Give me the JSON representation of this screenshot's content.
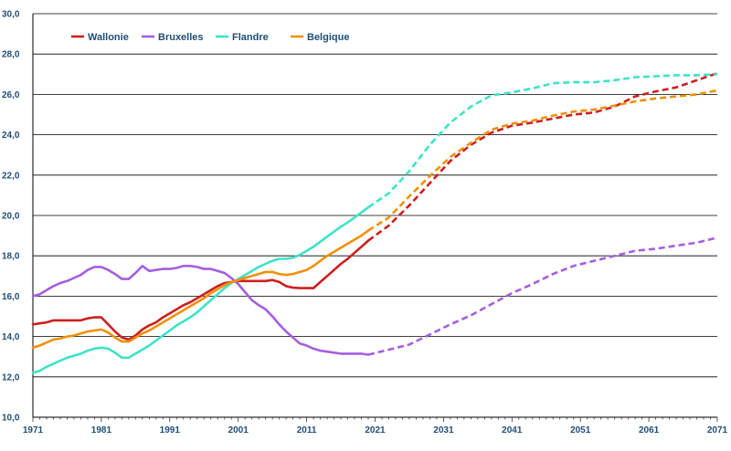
{
  "chart_data": {
    "type": "line",
    "title": "",
    "xlabel": "",
    "ylabel": "",
    "xlim": [
      1971,
      2071
    ],
    "ylim": [
      10,
      30
    ],
    "y_ticks": [
      "10,0",
      "12,0",
      "14,0",
      "16,0",
      "18,0",
      "20,0",
      "22,0",
      "24,0",
      "26,0",
      "28,0",
      "30,0"
    ],
    "x_ticks": [
      "1971",
      "1981",
      "1991",
      "2001",
      "2011",
      "2021",
      "2031",
      "2041",
      "2051",
      "2061",
      "2071"
    ],
    "grid": "horizontal",
    "legend_position": "top-left",
    "observed_until": 2020,
    "style_note": "solid lines up to 2020 (observed), dashed lines afterwards (projection)",
    "series": [
      {
        "name": "Wallonie",
        "color": "#cc1f1f",
        "points": [
          [
            1971,
            14.6
          ],
          [
            1972,
            14.65
          ],
          [
            1973,
            14.7
          ],
          [
            1974,
            14.8
          ],
          [
            1975,
            14.8
          ],
          [
            1976,
            14.8
          ],
          [
            1977,
            14.8
          ],
          [
            1978,
            14.8
          ],
          [
            1979,
            14.9
          ],
          [
            1980,
            14.95
          ],
          [
            1981,
            14.95
          ],
          [
            1982,
            14.6
          ],
          [
            1983,
            14.25
          ],
          [
            1984,
            13.95
          ],
          [
            1985,
            13.85
          ],
          [
            1986,
            14.05
          ],
          [
            1987,
            14.35
          ],
          [
            1988,
            14.55
          ],
          [
            1989,
            14.7
          ],
          [
            1990,
            14.95
          ],
          [
            1991,
            15.15
          ],
          [
            1992,
            15.35
          ],
          [
            1993,
            15.55
          ],
          [
            1994,
            15.7
          ],
          [
            1995,
            15.9
          ],
          [
            1996,
            16.1
          ],
          [
            1997,
            16.3
          ],
          [
            1998,
            16.5
          ],
          [
            1999,
            16.65
          ],
          [
            2000,
            16.7
          ],
          [
            2001,
            16.75
          ],
          [
            2002,
            16.75
          ],
          [
            2003,
            16.75
          ],
          [
            2004,
            16.75
          ],
          [
            2005,
            16.75
          ],
          [
            2006,
            16.8
          ],
          [
            2007,
            16.7
          ],
          [
            2008,
            16.5
          ],
          [
            2009,
            16.42
          ],
          [
            2010,
            16.4
          ],
          [
            2011,
            16.4
          ],
          [
            2012,
            16.4
          ],
          [
            2013,
            16.7
          ],
          [
            2014,
            17.0
          ],
          [
            2015,
            17.3
          ],
          [
            2016,
            17.6
          ],
          [
            2017,
            17.85
          ],
          [
            2018,
            18.15
          ],
          [
            2019,
            18.45
          ],
          [
            2020,
            18.75
          ],
          [
            2023,
            19.5
          ],
          [
            2026,
            20.5
          ],
          [
            2029,
            21.6
          ],
          [
            2032,
            22.7
          ],
          [
            2035,
            23.5
          ],
          [
            2038,
            24.1
          ],
          [
            2041,
            24.45
          ],
          [
            2044,
            24.6
          ],
          [
            2047,
            24.8
          ],
          [
            2050,
            25.0
          ],
          [
            2053,
            25.1
          ],
          [
            2056,
            25.4
          ],
          [
            2059,
            25.9
          ],
          [
            2062,
            26.15
          ],
          [
            2065,
            26.35
          ],
          [
            2068,
            26.7
          ],
          [
            2071,
            27.05
          ]
        ]
      },
      {
        "name": "Bruxelles",
        "color": "#a55ee0",
        "points": [
          [
            1971,
            16.0
          ],
          [
            1972,
            16.1
          ],
          [
            1973,
            16.3
          ],
          [
            1974,
            16.5
          ],
          [
            1975,
            16.65
          ],
          [
            1976,
            16.75
          ],
          [
            1977,
            16.9
          ],
          [
            1978,
            17.05
          ],
          [
            1979,
            17.3
          ],
          [
            1980,
            17.45
          ],
          [
            1981,
            17.45
          ],
          [
            1982,
            17.3
          ],
          [
            1983,
            17.1
          ],
          [
            1984,
            16.85
          ],
          [
            1985,
            16.85
          ],
          [
            1986,
            17.15
          ],
          [
            1987,
            17.5
          ],
          [
            1988,
            17.25
          ],
          [
            1989,
            17.3
          ],
          [
            1990,
            17.35
          ],
          [
            1991,
            17.35
          ],
          [
            1992,
            17.4
          ],
          [
            1993,
            17.5
          ],
          [
            1994,
            17.5
          ],
          [
            1995,
            17.45
          ],
          [
            1996,
            17.35
          ],
          [
            1997,
            17.35
          ],
          [
            1998,
            17.25
          ],
          [
            1999,
            17.15
          ],
          [
            2000,
            16.9
          ],
          [
            2001,
            16.6
          ],
          [
            2002,
            16.2
          ],
          [
            2003,
            15.8
          ],
          [
            2004,
            15.55
          ],
          [
            2005,
            15.35
          ],
          [
            2006,
            15.0
          ],
          [
            2007,
            14.6
          ],
          [
            2008,
            14.25
          ],
          [
            2009,
            13.95
          ],
          [
            2010,
            13.65
          ],
          [
            2011,
            13.55
          ],
          [
            2012,
            13.4
          ],
          [
            2013,
            13.3
          ],
          [
            2014,
            13.25
          ],
          [
            2015,
            13.2
          ],
          [
            2016,
            13.15
          ],
          [
            2017,
            13.15
          ],
          [
            2018,
            13.15
          ],
          [
            2019,
            13.15
          ],
          [
            2020,
            13.1
          ],
          [
            2023,
            13.35
          ],
          [
            2026,
            13.6
          ],
          [
            2029,
            14.1
          ],
          [
            2032,
            14.6
          ],
          [
            2035,
            15.05
          ],
          [
            2038,
            15.6
          ],
          [
            2041,
            16.15
          ],
          [
            2044,
            16.6
          ],
          [
            2047,
            17.1
          ],
          [
            2050,
            17.5
          ],
          [
            2053,
            17.75
          ],
          [
            2056,
            18.0
          ],
          [
            2059,
            18.25
          ],
          [
            2062,
            18.35
          ],
          [
            2065,
            18.5
          ],
          [
            2068,
            18.65
          ],
          [
            2071,
            18.9
          ]
        ]
      },
      {
        "name": "Flandre",
        "color": "#3de3c8",
        "points": [
          [
            1971,
            12.2
          ],
          [
            1972,
            12.3
          ],
          [
            1973,
            12.5
          ],
          [
            1974,
            12.65
          ],
          [
            1975,
            12.8
          ],
          [
            1976,
            12.95
          ],
          [
            1977,
            13.05
          ],
          [
            1978,
            13.15
          ],
          [
            1979,
            13.3
          ],
          [
            1980,
            13.4
          ],
          [
            1981,
            13.45
          ],
          [
            1982,
            13.4
          ],
          [
            1983,
            13.2
          ],
          [
            1984,
            12.95
          ],
          [
            1985,
            12.95
          ],
          [
            1986,
            13.15
          ],
          [
            1987,
            13.35
          ],
          [
            1988,
            13.55
          ],
          [
            1989,
            13.8
          ],
          [
            1990,
            14.05
          ],
          [
            1991,
            14.3
          ],
          [
            1992,
            14.55
          ],
          [
            1993,
            14.75
          ],
          [
            1994,
            14.95
          ],
          [
            1995,
            15.2
          ],
          [
            1996,
            15.5
          ],
          [
            1997,
            15.8
          ],
          [
            1998,
            16.1
          ],
          [
            1999,
            16.4
          ],
          [
            2000,
            16.65
          ],
          [
            2001,
            16.85
          ],
          [
            2002,
            17.05
          ],
          [
            2003,
            17.25
          ],
          [
            2004,
            17.45
          ],
          [
            2005,
            17.6
          ],
          [
            2006,
            17.75
          ],
          [
            2007,
            17.85
          ],
          [
            2008,
            17.85
          ],
          [
            2009,
            17.9
          ],
          [
            2010,
            18.05
          ],
          [
            2011,
            18.25
          ],
          [
            2012,
            18.45
          ],
          [
            2013,
            18.7
          ],
          [
            2014,
            18.95
          ],
          [
            2015,
            19.2
          ],
          [
            2016,
            19.45
          ],
          [
            2017,
            19.65
          ],
          [
            2018,
            19.9
          ],
          [
            2019,
            20.15
          ],
          [
            2020,
            20.4
          ],
          [
            2023,
            21.1
          ],
          [
            2026,
            22.2
          ],
          [
            2029,
            23.5
          ],
          [
            2032,
            24.6
          ],
          [
            2035,
            25.4
          ],
          [
            2038,
            25.95
          ],
          [
            2041,
            26.1
          ],
          [
            2044,
            26.3
          ],
          [
            2047,
            26.55
          ],
          [
            2050,
            26.6
          ],
          [
            2053,
            26.6
          ],
          [
            2056,
            26.7
          ],
          [
            2059,
            26.85
          ],
          [
            2062,
            26.9
          ],
          [
            2065,
            26.95
          ],
          [
            2068,
            26.95
          ],
          [
            2071,
            27.0
          ]
        ]
      },
      {
        "name": "Belgique",
        "color": "#f0900a",
        "points": [
          [
            1971,
            13.45
          ],
          [
            1972,
            13.55
          ],
          [
            1973,
            13.7
          ],
          [
            1974,
            13.85
          ],
          [
            1975,
            13.9
          ],
          [
            1976,
            14.0
          ],
          [
            1977,
            14.05
          ],
          [
            1978,
            14.15
          ],
          [
            1979,
            14.25
          ],
          [
            1980,
            14.3
          ],
          [
            1981,
            14.35
          ],
          [
            1982,
            14.2
          ],
          [
            1983,
            13.95
          ],
          [
            1984,
            13.75
          ],
          [
            1985,
            13.75
          ],
          [
            1986,
            13.95
          ],
          [
            1987,
            14.15
          ],
          [
            1988,
            14.3
          ],
          [
            1989,
            14.5
          ],
          [
            1990,
            14.7
          ],
          [
            1991,
            14.9
          ],
          [
            1992,
            15.1
          ],
          [
            1993,
            15.3
          ],
          [
            1994,
            15.5
          ],
          [
            1995,
            15.7
          ],
          [
            1996,
            15.9
          ],
          [
            1997,
            16.15
          ],
          [
            1998,
            16.35
          ],
          [
            1999,
            16.55
          ],
          [
            2000,
            16.7
          ],
          [
            2001,
            16.8
          ],
          [
            2002,
            16.9
          ],
          [
            2003,
            17.0
          ],
          [
            2004,
            17.1
          ],
          [
            2005,
            17.2
          ],
          [
            2006,
            17.2
          ],
          [
            2007,
            17.1
          ],
          [
            2008,
            17.05
          ],
          [
            2009,
            17.1
          ],
          [
            2010,
            17.2
          ],
          [
            2011,
            17.3
          ],
          [
            2012,
            17.5
          ],
          [
            2013,
            17.75
          ],
          [
            2014,
            18.0
          ],
          [
            2015,
            18.2
          ],
          [
            2016,
            18.4
          ],
          [
            2017,
            18.6
          ],
          [
            2018,
            18.8
          ],
          [
            2019,
            19.0
          ],
          [
            2020,
            19.25
          ],
          [
            2023,
            19.9
          ],
          [
            2026,
            20.95
          ],
          [
            2029,
            21.95
          ],
          [
            2032,
            22.9
          ],
          [
            2035,
            23.6
          ],
          [
            2038,
            24.25
          ],
          [
            2041,
            24.55
          ],
          [
            2044,
            24.7
          ],
          [
            2047,
            24.95
          ],
          [
            2050,
            25.15
          ],
          [
            2053,
            25.25
          ],
          [
            2056,
            25.45
          ],
          [
            2059,
            25.65
          ],
          [
            2062,
            25.8
          ],
          [
            2065,
            25.9
          ],
          [
            2068,
            26.0
          ],
          [
            2071,
            26.2
          ]
        ]
      }
    ]
  }
}
